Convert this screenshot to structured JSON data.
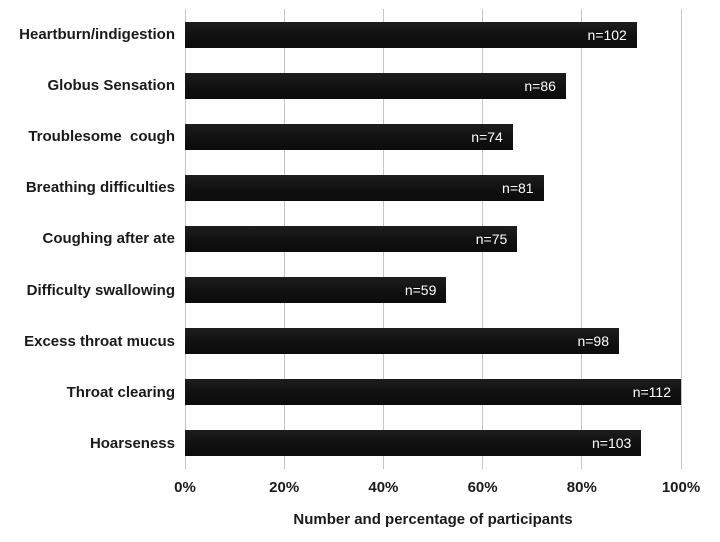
{
  "chart_data": {
    "type": "bar",
    "orientation": "horizontal",
    "title": "",
    "xlabel": "Number and percentage of participants",
    "ylabel": "",
    "xlim": [
      0,
      100
    ],
    "grid": "vertical",
    "legend": "none",
    "categories": [
      "Heartburn/indigestion",
      "Globus Sensation",
      "Troublesome  cough",
      "Breathing difficulties",
      "Coughing after ate",
      "Difficulty swallowing",
      "Excess throat mucus",
      "Throat clearing",
      "Hoarseness"
    ],
    "counts": [
      102,
      86,
      74,
      81,
      75,
      59,
      98,
      112,
      103
    ],
    "values_percent": [
      91.1,
      76.8,
      66.1,
      72.3,
      67.0,
      52.7,
      87.5,
      100.0,
      92.0
    ],
    "bar_labels": [
      "n=102",
      "n=86",
      "n=74",
      "n=81",
      "n=75",
      "n=59",
      "n=98",
      "n=112",
      "n=103"
    ],
    "x_tick_labels": [
      "0%",
      "20%",
      "40%",
      "60%",
      "80%",
      "100%"
    ],
    "x_tick_values": [
      0,
      20,
      40,
      60,
      80,
      100
    ],
    "colors": {
      "bar": "#121212",
      "gridline": "#c4c4c4",
      "bar_label_text": "#ffffff",
      "axis_text": "#1a1a1a",
      "background": "#ffffff"
    }
  }
}
